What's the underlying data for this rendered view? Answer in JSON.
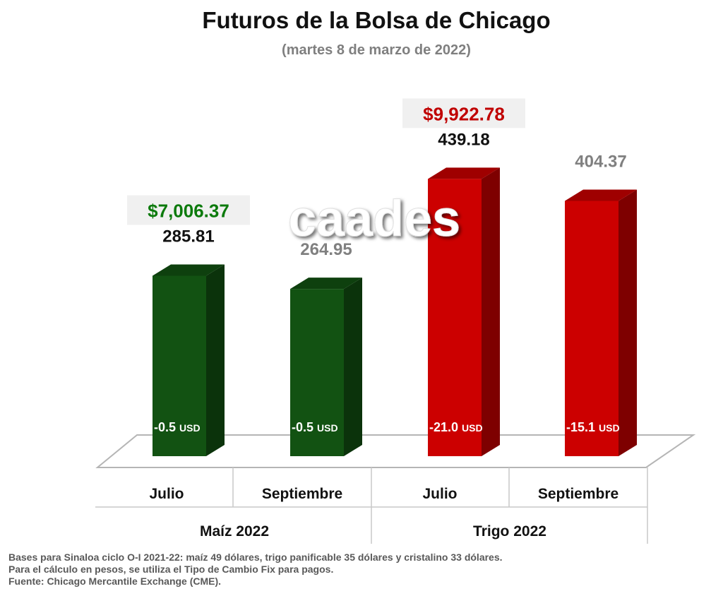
{
  "title": "Futuros de la Bolsa de Chicago",
  "subtitle": "(martes 8 de marzo de 2022)",
  "watermark": "caades",
  "chart_data": {
    "type": "bar",
    "groups": [
      "Maíz 2022",
      "Trigo 2022"
    ],
    "categories": [
      "Julio",
      "Septiembre",
      "Julio",
      "Septiembre"
    ],
    "category_group": [
      0,
      0,
      1,
      1
    ],
    "values": [
      285.81,
      264.95,
      439.18,
      404.37
    ],
    "value_labels": [
      "285.81",
      "264.95",
      "439.18",
      "404.37"
    ],
    "value_label_colors": [
      "#111111",
      "#808080",
      "#111111",
      "#808080"
    ],
    "bases": [
      "-0.5",
      "-0.5",
      "-21.0",
      "-15.1"
    ],
    "base_unit": "USD",
    "bar_colors": [
      "#125212",
      "#125212",
      "#cc0000",
      "#cc0000"
    ],
    "peso_prices": [
      {
        "bar": 0,
        "text": "$7,006.37",
        "color": "#0c7a0c"
      },
      {
        "bar": 2,
        "text": "$9,922.78",
        "color": "#c00000"
      }
    ],
    "ylim": [
      0,
      500
    ],
    "grid": false,
    "legend": "none"
  },
  "footnotes": [
    "Bases para Sinaloa ciclo O-I 2021-22: maíz 49 dólares, trigo panificable 35 dólares y cristalino 33 dólares.",
    "Para el cálculo en pesos, se utiliza el Tipo de Cambio Fix para pagos.",
    "Fuente: Chicago Mercantile Exchange (CME)."
  ]
}
